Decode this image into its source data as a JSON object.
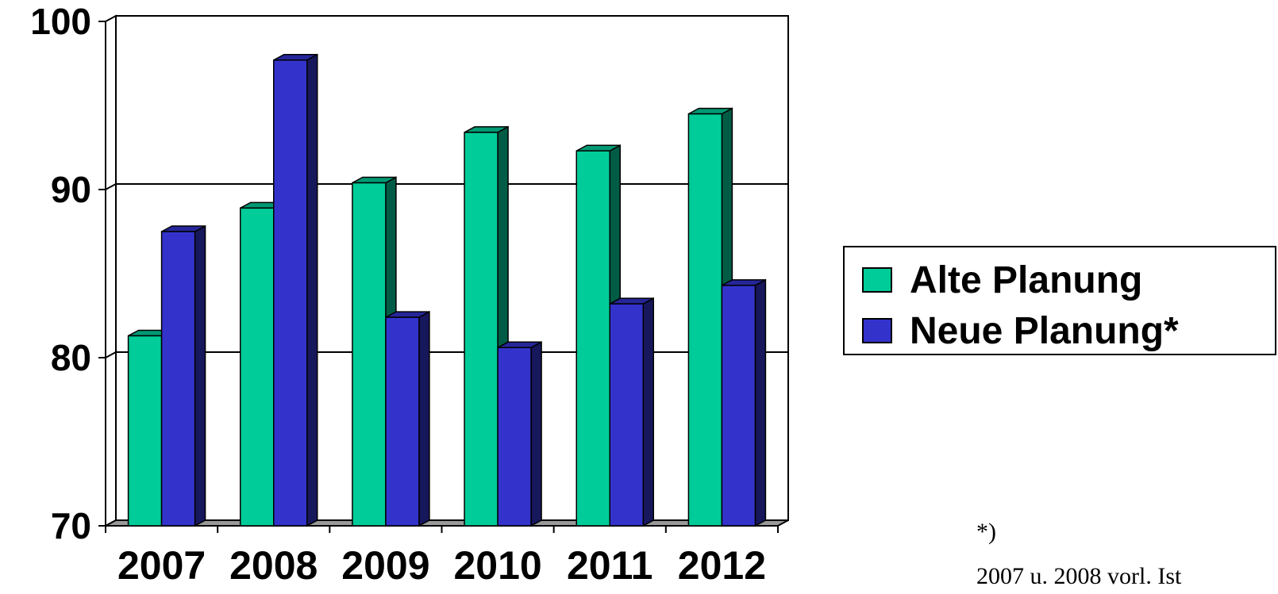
{
  "chart_data": {
    "type": "bar",
    "categories": [
      "2007",
      "2008",
      "2009",
      "2010",
      "2011",
      "2012"
    ],
    "series": [
      {
        "name": "Alte Planung",
        "values": [
          81.3,
          88.9,
          90.4,
          93.4,
          92.3,
          94.5
        ],
        "color": "#00CC99"
      },
      {
        "name": "Neue Planung*",
        "values": [
          87.5,
          97.7,
          82.4,
          80.6,
          83.2,
          84.3
        ],
        "color": "#3333CC"
      }
    ],
    "ylim": [
      70,
      100
    ],
    "yticks": [
      70,
      80,
      90,
      100
    ],
    "grid": true,
    "legend_position": "right",
    "title": "",
    "xlabel": "",
    "ylabel": ""
  },
  "footnote": {
    "mark": "*)",
    "text": "2007 u. 2008 vorl. Ist"
  }
}
